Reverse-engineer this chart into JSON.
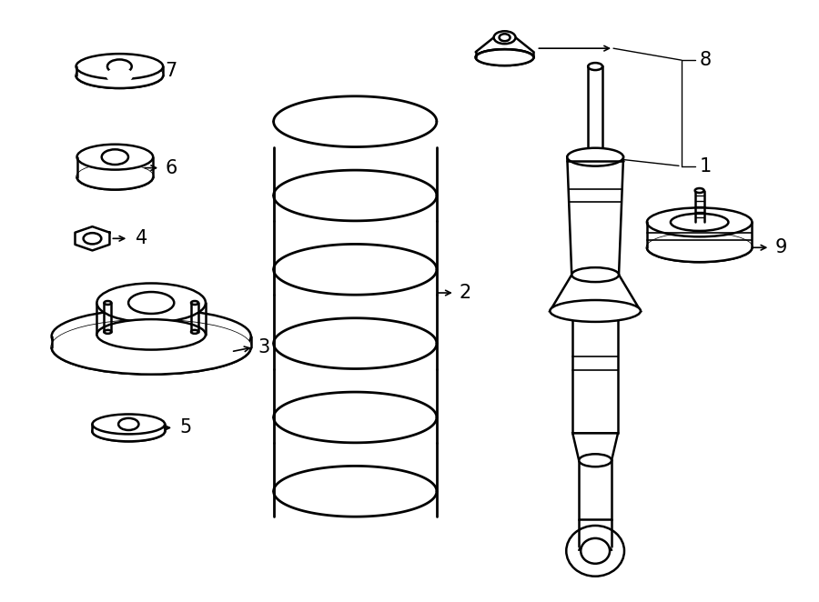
{
  "background_color": "#ffffff",
  "line_color": "#000000",
  "line_width": 1.8,
  "fig_width": 9.0,
  "fig_height": 6.62,
  "dpi": 100
}
